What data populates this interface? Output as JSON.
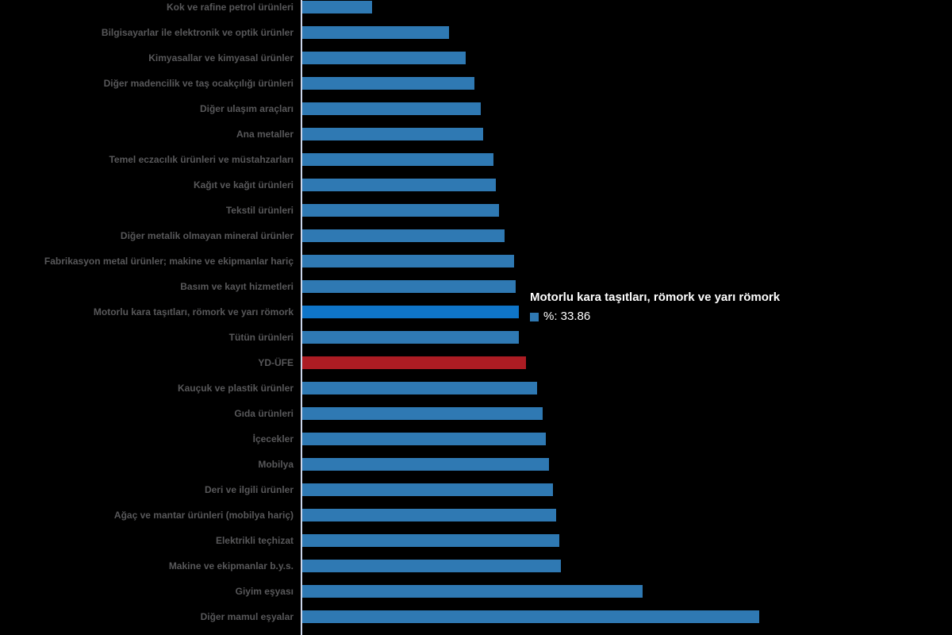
{
  "colors": {
    "background": "#000000",
    "bar_blue": "#2f79b3",
    "bar_hover_blue": "#0f75c8",
    "bar_red": "#ac1c23",
    "axis_line": "#ccd6eb",
    "label_gray": "#58585a",
    "tooltip_text": "#ffffff"
  },
  "chart_data": {
    "type": "bar",
    "orientation": "horizontal",
    "title": "",
    "xlabel": "",
    "ylabel": "",
    "grid": false,
    "legend_position": "none",
    "value_unit": "%",
    "xlim": [
      0,
      75
    ],
    "categories": [
      "Kok ve rafine petrol ürünleri",
      "Bilgisayarlar ile elektronik ve optik ürünler",
      "Kimyasallar ve kimyasal ürünler",
      "Diğer madencilik ve taş ocakçılığı ürünleri",
      "Diğer ulaşım araçları",
      "Ana metaller",
      "Temel eczacılık ürünleri ve müstahzarları",
      "Kağıt ve kağıt ürünleri",
      "Tekstil ürünleri",
      "Diğer metalik olmayan mineral ürünler",
      "Fabrikasyon metal ürünler; makine ve ekipmanlar hariç",
      "Basım ve kayıt hizmetleri",
      "Motorlu kara taşıtları, römork ve yarı römork",
      "Tütün ürünleri",
      "YD-ÜFE",
      "Kauçuk ve plastik ürünler",
      "Gıda ürünleri",
      "İçecekler",
      "Mobilya",
      "Deri ve ilgili ürünler",
      "Ağaç ve mantar ürünleri (mobilya hariç)",
      "Elektrikli teçhizat",
      "Makine ve ekipmanlar b.y.s.",
      "Giyim eşyası",
      "Diğer mamul eşyalar"
    ],
    "values": [
      10.9,
      22.9,
      25.5,
      26.9,
      27.9,
      28.3,
      29.9,
      30.3,
      30.8,
      31.6,
      33.1,
      33.4,
      33.86,
      33.9,
      35.0,
      36.7,
      37.6,
      38.1,
      38.6,
      39.2,
      39.7,
      40.2,
      40.4,
      53.2,
      71.4
    ],
    "hovered_index": 12,
    "highlight_red_index": 14
  },
  "tooltip": {
    "title": "Motorlu kara taşıtları, römork ve yarı römork",
    "series_name": "%",
    "value": "33.86",
    "value_line": "%: 33.86"
  }
}
